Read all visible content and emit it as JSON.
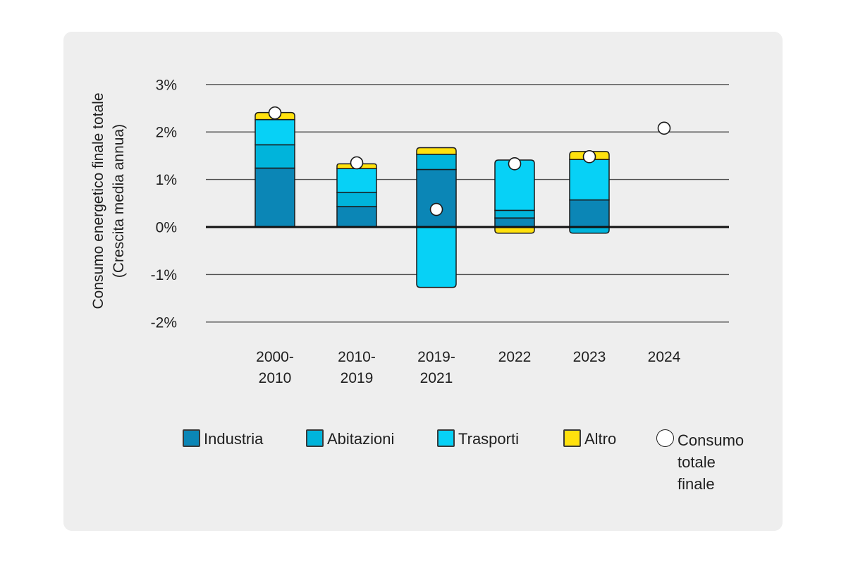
{
  "page_background": "#ffffff",
  "card_background": "#eeeeee",
  "chart_data": {
    "type": "bar",
    "stacked": true,
    "grid": true,
    "legend_position": "bottom",
    "ylabel_line1": "Consumo energetico finale totale",
    "ylabel_line2": "(Crescita media annua)",
    "ylim": [
      -2.4,
      3.4
    ],
    "y_ticks": [
      {
        "value": 3,
        "label": "3%"
      },
      {
        "value": 2,
        "label": "2%"
      },
      {
        "value": 1,
        "label": "1%"
      },
      {
        "value": 0,
        "label": "0%"
      },
      {
        "value": -1,
        "label": "-1%"
      },
      {
        "value": -2,
        "label": "-2%"
      }
    ],
    "categories": [
      "2000-2010",
      "2010-2019",
      "2019-2021",
      "2022",
      "2023",
      "2024"
    ],
    "category_label_lines": [
      [
        "2000-",
        "2010"
      ],
      [
        "2010-",
        "2019"
      ],
      [
        "2019-",
        "2021"
      ],
      [
        "2022"
      ],
      [
        "2023"
      ],
      [
        "2024"
      ]
    ],
    "series": [
      {
        "name": "Industria",
        "color": "#0b86b6",
        "values": [
          1.24,
          0.43,
          1.21,
          0.19,
          0.57,
          null
        ]
      },
      {
        "name": "Abitazioni",
        "color": "#00b4db",
        "values": [
          0.49,
          0.3,
          0.32,
          0.16,
          -0.13,
          null
        ]
      },
      {
        "name": "Trasporti",
        "color": "#07d1f6",
        "values": [
          0.53,
          0.5,
          -1.27,
          1.06,
          0.85,
          null
        ]
      },
      {
        "name": "Altro",
        "color": "#ffe10e",
        "values": [
          0.15,
          0.1,
          0.14,
          -0.13,
          0.17,
          null
        ]
      }
    ],
    "totals": {
      "name": "Consumo totale finale",
      "marker": "circle",
      "marker_color": "#ffffff",
      "values": [
        2.4,
        1.35,
        0.37,
        1.33,
        1.48,
        2.08
      ]
    }
  }
}
